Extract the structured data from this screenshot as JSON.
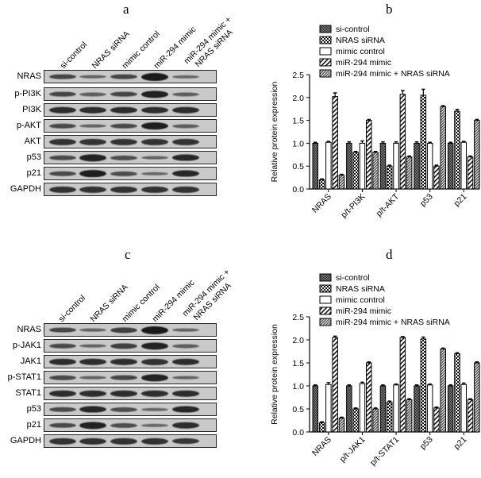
{
  "panels": {
    "a": {
      "letter": "a",
      "lanes": [
        "si-control",
        "NRAS siRNA",
        "mimic control",
        "miR-294 mimic",
        "miR-294 mimic +",
        "NRAS siRNA"
      ],
      "rows": [
        {
          "label": "NRAS",
          "intensity": [
            0.55,
            0.25,
            0.55,
            1.0,
            0.2
          ]
        },
        {
          "label": "p-PI3K",
          "intensity": [
            0.55,
            0.3,
            0.55,
            0.9,
            0.3
          ]
        },
        {
          "label": "PI3K",
          "intensity": [
            0.8,
            0.8,
            0.8,
            0.8,
            0.8
          ]
        },
        {
          "label": "p-AKT",
          "intensity": [
            0.5,
            0.25,
            0.5,
            0.95,
            0.3
          ]
        },
        {
          "label": "AKT",
          "intensity": [
            0.75,
            0.75,
            0.75,
            0.75,
            0.75
          ]
        },
        {
          "label": "p53",
          "intensity": [
            0.5,
            0.9,
            0.45,
            0.25,
            0.85
          ]
        },
        {
          "label": "p21",
          "intensity": [
            0.5,
            0.95,
            0.45,
            0.2,
            0.85
          ]
        },
        {
          "label": "GAPDH",
          "intensity": [
            0.75,
            0.75,
            0.75,
            0.75,
            0.75
          ]
        }
      ]
    },
    "c": {
      "letter": "c",
      "lanes": [
        "si-control",
        "NRAS siRNA",
        "mimic control",
        "miR-294 mimic",
        "miR-294 mimic +",
        "NRAS siRNA"
      ],
      "rows": [
        {
          "label": "NRAS",
          "intensity": [
            0.55,
            0.25,
            0.6,
            1.0,
            0.25
          ]
        },
        {
          "label": "p-JAK1",
          "intensity": [
            0.5,
            0.25,
            0.6,
            0.9,
            0.3
          ]
        },
        {
          "label": "JAK1",
          "intensity": [
            0.8,
            0.8,
            0.8,
            0.75,
            0.8
          ]
        },
        {
          "label": "p-STAT1",
          "intensity": [
            0.5,
            0.25,
            0.55,
            0.9,
            0.25
          ]
        },
        {
          "label": "STAT1",
          "intensity": [
            0.8,
            0.8,
            0.8,
            0.8,
            0.8
          ]
        },
        {
          "label": "p53",
          "intensity": [
            0.5,
            0.85,
            0.45,
            0.2,
            0.85
          ]
        },
        {
          "label": "p21",
          "intensity": [
            0.5,
            0.9,
            0.45,
            0.2,
            0.8
          ]
        },
        {
          "label": "GAPDH",
          "intensity": [
            0.75,
            0.75,
            0.75,
            0.75,
            0.7
          ]
        }
      ]
    },
    "b": {
      "letter": "b"
    },
    "d": {
      "letter": "d"
    }
  },
  "chart_data": [
    {
      "type": "bar",
      "panel": "b",
      "title": "",
      "xlabel": "",
      "ylabel": "Relative protein expression",
      "ylim": [
        0,
        2.5
      ],
      "yticks": [
        "0.0",
        "0.5",
        "1.0",
        "1.5",
        "2.0",
        "2.5"
      ],
      "grid": false,
      "legend_position": "top",
      "categories": [
        "NRAS",
        "p/t-PI3K",
        "p/t-AKT",
        "p53",
        "p21"
      ],
      "series": [
        {
          "name": "si-control",
          "pattern": "crosshatch-dense",
          "values": [
            1.0,
            1.0,
            1.0,
            1.0,
            1.0
          ]
        },
        {
          "name": "NRAS siRNA",
          "pattern": "checker",
          "values": [
            0.2,
            0.8,
            0.5,
            2.05,
            1.7
          ]
        },
        {
          "name": "mimic control",
          "pattern": "open",
          "values": [
            1.02,
            1.0,
            1.0,
            1.0,
            1.02
          ]
        },
        {
          "name": "miR-294 mimic",
          "pattern": "diagonal",
          "values": [
            2.02,
            1.5,
            2.07,
            0.5,
            0.7
          ]
        },
        {
          "name": "miR-294 mimic + NRAS siRNA",
          "pattern": "diagonal-dense",
          "values": [
            0.3,
            0.8,
            0.7,
            1.8,
            1.5
          ]
        }
      ],
      "errors": [
        [
          0.02,
          0.03,
          0.03,
          0.03,
          0.02
        ],
        [
          0.02,
          0.02,
          0.02,
          0.13,
          0.04
        ],
        [
          0.02,
          0.05,
          0.03,
          0.02,
          0.02
        ],
        [
          0.08,
          0.02,
          0.08,
          0.02,
          0.02
        ],
        [
          0.02,
          0.02,
          0.02,
          0.02,
          0.02
        ]
      ]
    },
    {
      "type": "bar",
      "panel": "d",
      "title": "",
      "xlabel": "",
      "ylabel": "Relative protein expression",
      "ylim": [
        0,
        2.5
      ],
      "yticks": [
        "0.0",
        "0.5",
        "1.0",
        "1.5",
        "2.0",
        "2.5"
      ],
      "grid": false,
      "legend_position": "top",
      "categories": [
        "NRAS",
        "p/t-JAK1",
        "p/t-STAT1",
        "p53",
        "p21"
      ],
      "series": [
        {
          "name": "si-control",
          "pattern": "crosshatch-dense",
          "values": [
            1.0,
            1.0,
            1.0,
            1.0,
            1.0
          ]
        },
        {
          "name": "NRAS siRNA",
          "pattern": "checker",
          "values": [
            0.2,
            0.5,
            0.65,
            2.02,
            1.7
          ]
        },
        {
          "name": "mimic control",
          "pattern": "open",
          "values": [
            1.03,
            1.05,
            1.02,
            1.02,
            1.03
          ]
        },
        {
          "name": "miR-294 mimic",
          "pattern": "diagonal",
          "values": [
            2.05,
            1.5,
            2.05,
            0.52,
            0.7
          ]
        },
        {
          "name": "miR-294 mimic + NRAS siRNA",
          "pattern": "diagonal-dense",
          "values": [
            0.3,
            0.5,
            0.7,
            1.8,
            1.5
          ]
        }
      ],
      "errors": [
        [
          0.02,
          0.02,
          0.02,
          0.02,
          0.02
        ],
        [
          0.02,
          0.02,
          0.02,
          0.04,
          0.02
        ],
        [
          0.04,
          0.03,
          0.02,
          0.02,
          0.03
        ],
        [
          0.03,
          0.02,
          0.02,
          0.02,
          0.02
        ],
        [
          0.02,
          0.02,
          0.02,
          0.02,
          0.02
        ]
      ]
    }
  ]
}
